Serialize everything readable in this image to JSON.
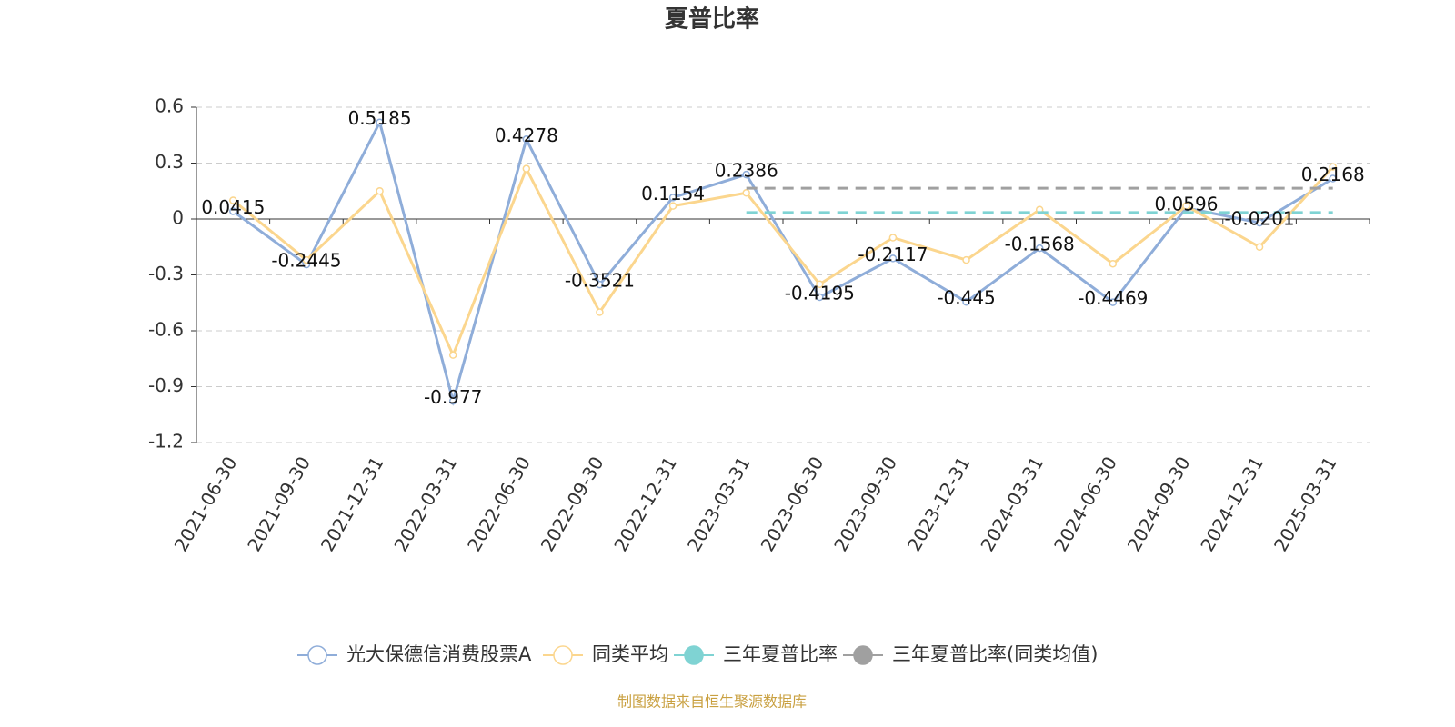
{
  "chart_data": {
    "type": "line",
    "title": "夏普比率",
    "categories": [
      "2021-06-30",
      "2021-09-30",
      "2021-12-31",
      "2022-03-31",
      "2022-06-30",
      "2022-09-30",
      "2022-12-31",
      "2023-03-31",
      "2023-06-30",
      "2023-09-30",
      "2023-12-31",
      "2024-03-31",
      "2024-06-30",
      "2024-09-30",
      "2024-12-31",
      "2025-03-31"
    ],
    "series": [
      {
        "name": "光大保德信消费股票A",
        "color": "#8fadd9",
        "labels": true,
        "values": [
          0.0415,
          -0.2445,
          0.5185,
          -0.977,
          0.4278,
          -0.3521,
          0.1154,
          0.2386,
          -0.4195,
          -0.2117,
          -0.445,
          -0.1568,
          -0.4469,
          0.0596,
          -0.0201,
          0.2168
        ]
      },
      {
        "name": "同类平均",
        "color": "#fbd68e",
        "labels": false,
        "values": [
          0.1,
          -0.22,
          0.15,
          -0.73,
          0.27,
          -0.5,
          0.07,
          0.14,
          -0.35,
          -0.1,
          -0.22,
          0.05,
          -0.24,
          0.07,
          -0.15,
          0.28
        ]
      },
      {
        "name": "三年夏普比率",
        "color": "#7fd3d3",
        "type": "hline",
        "value": 0.035,
        "from": "2023-03-31",
        "to": "2025-03-31"
      },
      {
        "name": "三年夏普比率(同类均值)",
        "color": "#a0a0a0",
        "type": "hline",
        "value": 0.165,
        "from": "2023-03-31",
        "to": "2025-03-31"
      }
    ],
    "ylim": [
      -1.2,
      0.6
    ],
    "yticks": [
      -1.2,
      -0.9,
      -0.6,
      -0.3,
      0,
      0.3,
      0.6
    ],
    "grid": true,
    "legend": "bottom",
    "source": "制图数据来自恒生聚源数据库"
  }
}
